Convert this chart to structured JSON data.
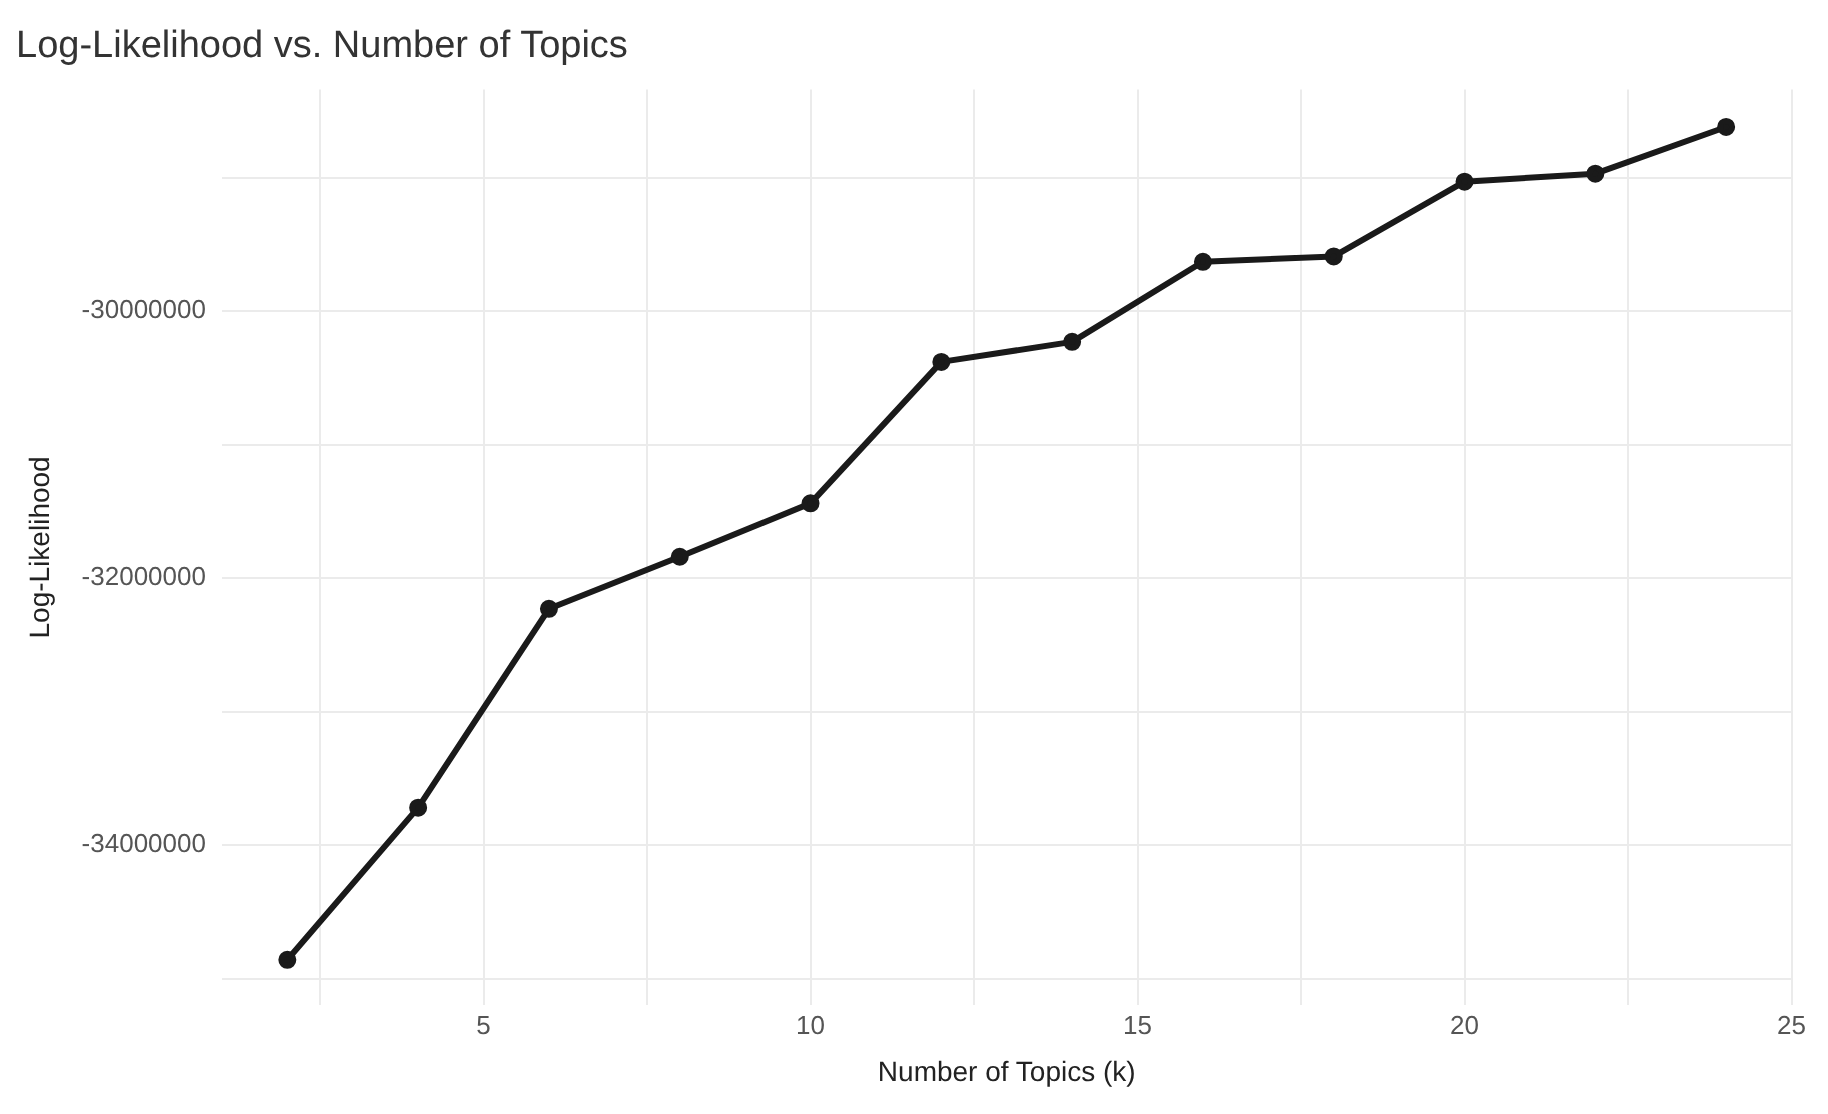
{
  "chart_data": {
    "type": "line",
    "title": "Log-Likelihood vs. Number of Topics",
    "xlabel": "Number of Topics (k)",
    "ylabel": "Log-Likelihood",
    "x": [
      2,
      4,
      6,
      8,
      10,
      12,
      14,
      16,
      18,
      20,
      22,
      24
    ],
    "series": [
      {
        "color": "#1a1a1a",
        "values": [
          -34860000,
          -33720000,
          -32230000,
          -31840000,
          -31440000,
          -30380000,
          -30230000,
          -29630000,
          -29590000,
          -29030000,
          -28970000,
          -28620000
        ]
      }
    ],
    "xlim": [
      1.0,
      25.0
    ],
    "ylim": [
      -35200000,
      -28340000
    ],
    "xticks": [
      {
        "value": 2.5,
        "label": null
      },
      5,
      {
        "value": 7.5,
        "label": null
      },
      10,
      {
        "value": 12.5,
        "label": null
      },
      15,
      {
        "value": 17.5,
        "label": null
      },
      20,
      {
        "value": 22.5,
        "label": null
      },
      25
    ],
    "yticks": [
      {
        "value": -35000000,
        "label": null
      },
      -34000000,
      {
        "value": -33000000,
        "label": null
      },
      -32000000,
      {
        "value": -31000000,
        "label": null
      },
      -30000000,
      {
        "value": -29000000,
        "label": null
      }
    ],
    "grid": true,
    "marker": "circle",
    "line_style": "solid",
    "legend": false
  }
}
